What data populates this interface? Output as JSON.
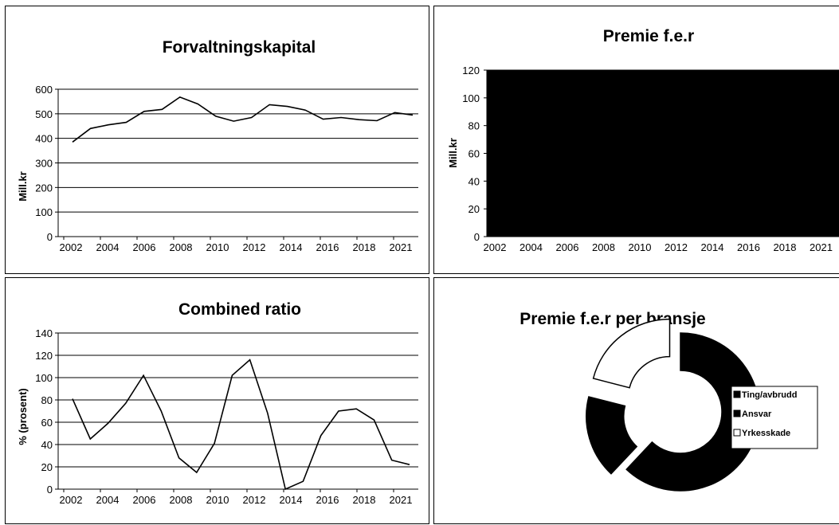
{
  "chart_data": [
    {
      "type": "line",
      "title": "Forvaltningskapital",
      "ylabel": "Mill.kr",
      "xlabel": "",
      "x_tick_labels": [
        "2002",
        "2004",
        "2006",
        "2008",
        "2010",
        "2012",
        "2014",
        "2016",
        "2018",
        "2021"
      ],
      "y_tick_labels": [
        "0",
        "100",
        "200",
        "300",
        "400",
        "500",
        "600"
      ],
      "ylim": [
        0,
        600
      ],
      "grid": true,
      "series": [
        {
          "values": [
            385,
            440,
            455,
            465,
            510,
            518,
            568,
            540,
            490,
            470,
            485,
            537,
            530,
            515,
            478,
            485,
            476,
            472,
            505,
            495
          ]
        }
      ]
    },
    {
      "type": "area",
      "title": "Premie f.e.r",
      "ylabel": "Mill.kr",
      "xlabel": "",
      "x_tick_labels": [
        "2002",
        "2004",
        "2006",
        "2008",
        "2010",
        "2012",
        "2014",
        "2016",
        "2018",
        "2021"
      ],
      "y_tick_labels": [
        "0",
        "20",
        "40",
        "60",
        "80",
        "100",
        "120"
      ],
      "ylim": [
        0,
        120
      ],
      "grid": false,
      "series": [
        {
          "values": [
            120,
            120,
            120,
            120,
            120,
            120,
            120,
            120,
            120,
            120,
            120,
            120,
            120,
            120,
            120,
            120,
            120,
            120,
            120,
            120
          ]
        }
      ]
    },
    {
      "type": "line",
      "title": "Combined ratio",
      "ylabel": "% (prosent)",
      "xlabel": "",
      "x_tick_labels": [
        "2002",
        "2004",
        "2006",
        "2008",
        "2010",
        "2012",
        "2014",
        "2016",
        "2018",
        "2021"
      ],
      "y_tick_labels": [
        "0",
        "20",
        "40",
        "60",
        "80",
        "100",
        "120",
        "140"
      ],
      "ylim": [
        0,
        140
      ],
      "grid": true,
      "series": [
        {
          "values": [
            81,
            45,
            59,
            77,
            102,
            70,
            28,
            15,
            41,
            102,
            116,
            68,
            0,
            7,
            48,
            70,
            72,
            62,
            26,
            22
          ]
        }
      ]
    },
    {
      "type": "pie",
      "title": "Premie f.e.r per bransje",
      "legend_position": "right",
      "slices": [
        {
          "label": "Ting/avbrudd",
          "value": 62,
          "color": "#000000"
        },
        {
          "label": "Ansvar",
          "value": 17,
          "color": "#000000"
        },
        {
          "label": "Yrkesskade",
          "value": 21,
          "color": "#ffffff"
        }
      ]
    }
  ]
}
